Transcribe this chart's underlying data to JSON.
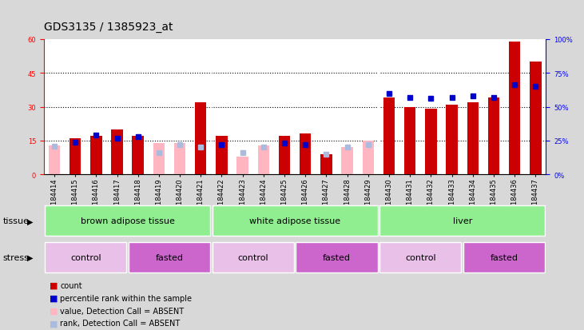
{
  "title": "GDS3135 / 1385923_at",
  "samples": [
    "GSM184414",
    "GSM184415",
    "GSM184416",
    "GSM184417",
    "GSM184418",
    "GSM184419",
    "GSM184420",
    "GSM184421",
    "GSM184422",
    "GSM184423",
    "GSM184424",
    "GSM184425",
    "GSM184426",
    "GSM184427",
    "GSM184428",
    "GSM184429",
    "GSM184430",
    "GSM184431",
    "GSM184432",
    "GSM184433",
    "GSM184434",
    "GSM184435",
    "GSM184436",
    "GSM184437"
  ],
  "count": [
    0,
    16,
    17,
    20,
    17,
    0,
    0,
    32,
    17,
    0,
    0,
    17,
    18,
    9,
    0,
    0,
    34,
    30,
    29,
    31,
    32,
    34,
    59,
    50
  ],
  "count_absent": [
    13,
    0,
    0,
    0,
    0,
    14,
    14,
    0,
    0,
    8,
    13,
    0,
    0,
    0,
    12,
    15,
    0,
    0,
    0,
    0,
    0,
    0,
    0,
    0
  ],
  "rank": [
    0,
    24,
    29,
    27,
    28,
    0,
    0,
    0,
    22,
    0,
    0,
    23,
    22,
    0,
    0,
    0,
    60,
    57,
    56,
    57,
    58,
    57,
    66,
    65
  ],
  "rank_absent": [
    21,
    0,
    0,
    0,
    0,
    16,
    22,
    20,
    0,
    16,
    20,
    0,
    0,
    15,
    20,
    22,
    0,
    0,
    0,
    0,
    0,
    0,
    0,
    0
  ],
  "tissue_groups": [
    {
      "label": "brown adipose tissue",
      "start": 0,
      "end": 8
    },
    {
      "label": "white adipose tissue",
      "start": 8,
      "end": 16
    },
    {
      "label": "liver",
      "start": 16,
      "end": 24
    }
  ],
  "stress_groups": [
    {
      "label": "control",
      "start": 0,
      "end": 4,
      "color": "#E8C0E8"
    },
    {
      "label": "fasted",
      "start": 4,
      "end": 8,
      "color": "#CC66CC"
    },
    {
      "label": "control",
      "start": 8,
      "end": 12,
      "color": "#E8C0E8"
    },
    {
      "label": "fasted",
      "start": 12,
      "end": 16,
      "color": "#CC66CC"
    },
    {
      "label": "control",
      "start": 16,
      "end": 20,
      "color": "#E8C0E8"
    },
    {
      "label": "fasted",
      "start": 20,
      "end": 24,
      "color": "#CC66CC"
    }
  ],
  "ylim_left": [
    0,
    60
  ],
  "ylim_right": [
    0,
    100
  ],
  "yticks_left": [
    0,
    15,
    30,
    45,
    60
  ],
  "yticks_right": [
    0,
    25,
    50,
    75,
    100
  ],
  "bar_color": "#CC0000",
  "bar_absent_color": "#FFB6C1",
  "rank_color": "#0000CC",
  "rank_absent_color": "#AABBDD",
  "bg_color": "#D8D8D8",
  "plot_bg": "#FFFFFF",
  "tissue_color": "#90EE90",
  "title_fontsize": 10,
  "tick_fontsize": 6,
  "label_fontsize": 8,
  "row_label_fontsize": 8
}
